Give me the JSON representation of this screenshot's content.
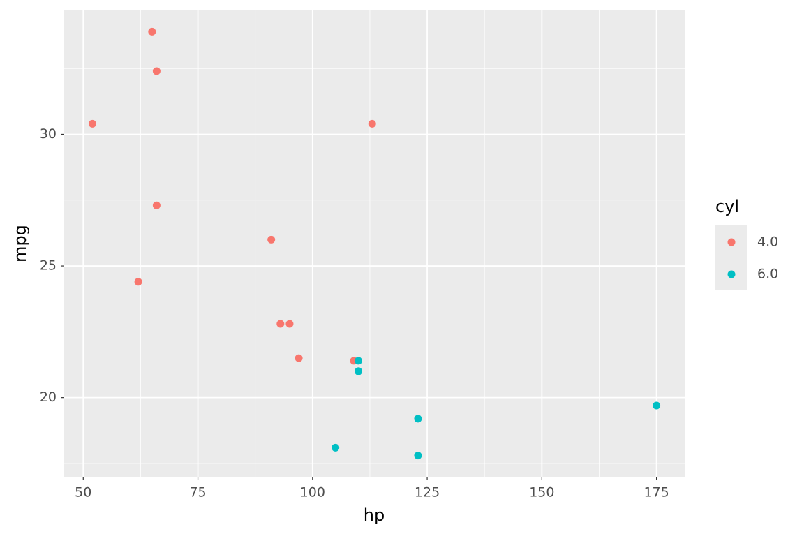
{
  "chart_data": {
    "type": "scatter",
    "x_label": "hp",
    "y_label": "mpg",
    "legend_title": "cyl",
    "xlim": [
      45.85,
      181.15
    ],
    "ylim": [
      16.995,
      34.705
    ],
    "xticks": [
      50,
      75,
      100,
      125,
      150,
      175
    ],
    "yticks": [
      20,
      25,
      30
    ],
    "xminor": [
      62.5,
      87.5,
      112.5,
      137.5,
      162.5
    ],
    "yminor": [
      17.5,
      22.5,
      27.5,
      32.5
    ],
    "grid": true,
    "legend": "right",
    "series": [
      {
        "name": "4.0",
        "color": "#F8766D",
        "x": [
          93,
          62,
          95,
          66,
          52,
          65,
          97,
          66,
          91,
          113,
          109
        ],
        "y": [
          22.8,
          24.4,
          22.8,
          32.4,
          30.4,
          33.9,
          21.5,
          27.3,
          26.0,
          30.4,
          21.4
        ]
      },
      {
        "name": "6.0",
        "color": "#00BFC4",
        "x": [
          110,
          110,
          110,
          105,
          123,
          123,
          175
        ],
        "y": [
          21.0,
          21.0,
          21.4,
          18.1,
          19.2,
          17.8,
          19.7
        ]
      }
    ]
  }
}
